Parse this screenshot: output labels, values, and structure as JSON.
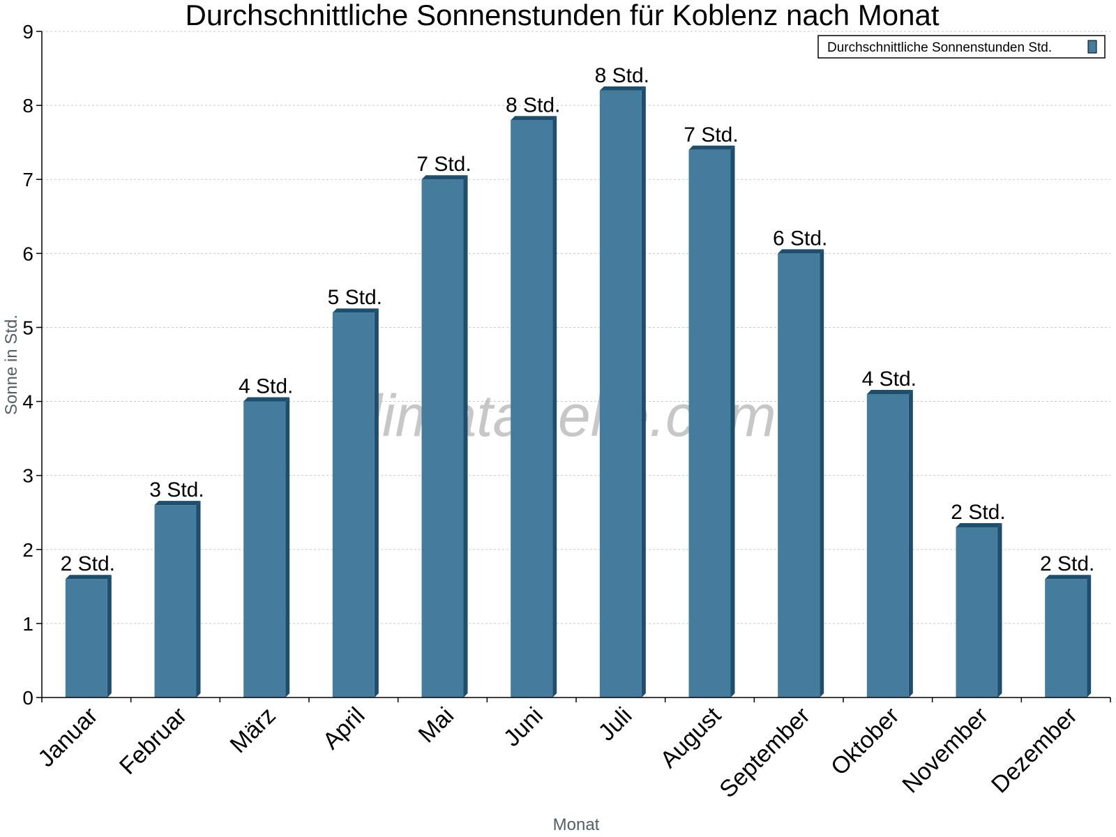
{
  "chart_data": {
    "type": "bar",
    "title": "Durchschnittliche Sonnenstunden für Koblenz nach Monat",
    "xlabel": "Monat",
    "ylabel": "Sonne in Std.",
    "ylim": [
      0,
      9
    ],
    "yticks": [
      0,
      1,
      2,
      3,
      4,
      5,
      6,
      7,
      8,
      9
    ],
    "grid": true,
    "legend_position": "top-right",
    "categories": [
      "Januar",
      "Februar",
      "März",
      "April",
      "Mai",
      "Juni",
      "Juli",
      "August",
      "September",
      "Oktober",
      "November",
      "Dezember"
    ],
    "series": [
      {
        "name": "Durchschnittliche Sonnenstunden Std.",
        "color": "#457b9d",
        "values": [
          1.6,
          2.6,
          4.0,
          5.2,
          7.0,
          7.8,
          8.2,
          7.4,
          6.0,
          4.1,
          2.3,
          1.6
        ],
        "labels": [
          "2 Std.",
          "3 Std.",
          "4 Std.",
          "5 Std.",
          "7 Std.",
          "8 Std.",
          "8 Std.",
          "7 Std.",
          "6 Std.",
          "4 Std.",
          "2 Std.",
          "2 Std."
        ]
      }
    ]
  },
  "watermark": "klimatabelle.com",
  "colors": {
    "bar_front": "#457b9d",
    "bar_side": "#1d4e6e",
    "grid": "#c8c8c8"
  }
}
